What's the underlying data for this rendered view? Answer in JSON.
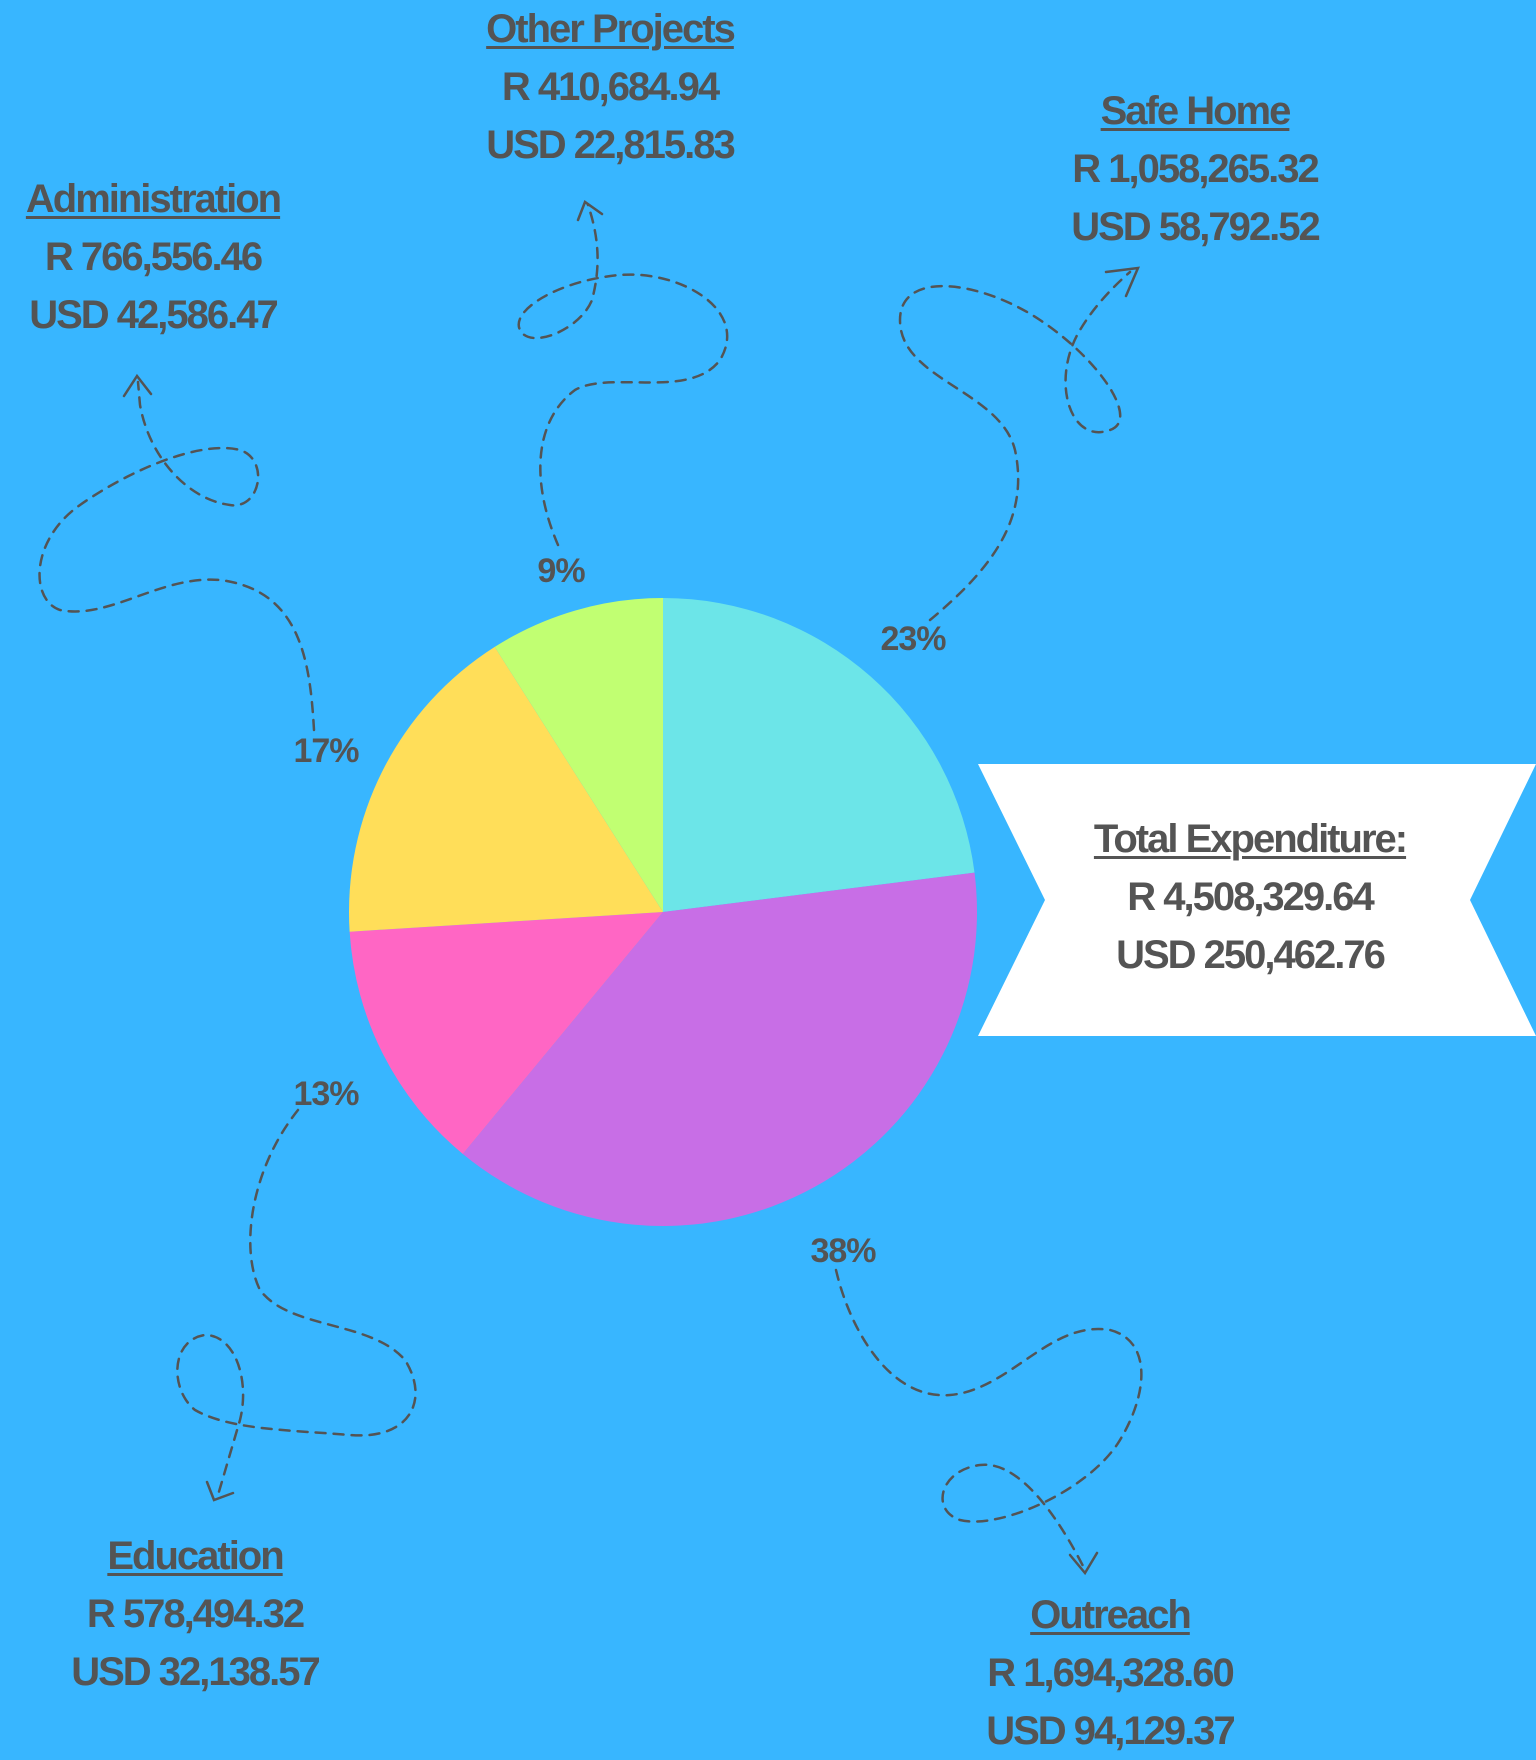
{
  "chart_data": {
    "type": "pie",
    "title": "",
    "slices": [
      {
        "name": "Safe Home",
        "rand": "R 1,058,265.32",
        "usd": "USD 58,792.52",
        "percent_label": "23%",
        "value": 23,
        "color": "#6ce5e8"
      },
      {
        "name": "Outreach",
        "rand": "R 1,694,328.60",
        "usd": "USD 94,129.37",
        "percent_label": "38%",
        "value": 38,
        "color": "#c86ee6"
      },
      {
        "name": "Education",
        "rand": "R 578,494.32",
        "usd": "USD 32,138.57",
        "percent_label": "13%",
        "value": 13,
        "color": "#ff66c4"
      },
      {
        "name": "Administration",
        "rand": "R 766,556.46",
        "usd": "USD 42,586.47",
        "percent_label": "17%",
        "value": 17,
        "color": "#ffde59"
      },
      {
        "name": "Other Projects",
        "rand": "R 410,684.94",
        "usd": "USD 22,815.83",
        "percent_label": "9%",
        "value": 9,
        "color": "#c1ff72"
      }
    ],
    "total": {
      "name": "Total  Expenditure:",
      "rand": "R 4,508,329.64",
      "usd": "USD 250,462.76"
    }
  },
  "colors": {
    "background": "#38b6ff",
    "text": "#545454",
    "banner": "#ffffff"
  }
}
